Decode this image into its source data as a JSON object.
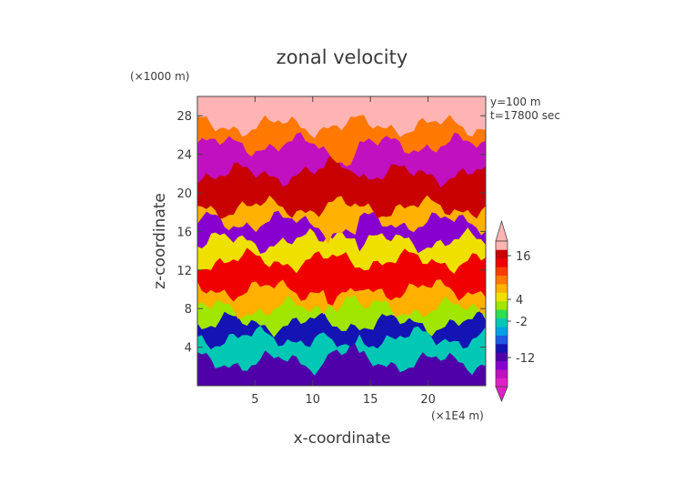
{
  "chart_data": {
    "type": "heatmap",
    "title": "zonal velocity",
    "xlabel": "x-coordinate",
    "ylabel": "z-coordinate",
    "x_unit": "(×1E4 m)",
    "y_unit": "(×1000 m)",
    "annotations": [
      "y=100 m",
      "t=17800 sec"
    ],
    "xlim": [
      0,
      25
    ],
    "ylim": [
      0,
      30
    ],
    "x_ticks": [
      5,
      10,
      15,
      20
    ],
    "y_ticks": [
      4,
      8,
      12,
      16,
      20,
      24,
      28
    ],
    "colorbar": {
      "tick_labels": [
        "16",
        "4",
        "-2",
        "-12"
      ],
      "tick_values": [
        16,
        4,
        -2,
        -12
      ],
      "range": [
        -20,
        20
      ],
      "colors": [
        "#e020c8",
        "#c010c0",
        "#8800d0",
        "#5000a8",
        "#1414b4",
        "#1e5ae6",
        "#00a0e6",
        "#00c8b4",
        "#30dc50",
        "#a0e600",
        "#f0e000",
        "#ffb000",
        "#ff7800",
        "#ff3c00",
        "#f00000",
        "#c80000",
        "#ffb4b4"
      ]
    },
    "bands": [
      {
        "z": [
          0,
          2.5
        ],
        "value": -12
      },
      {
        "z": [
          2.5,
          5
        ],
        "value": -3
      },
      {
        "z": [
          5,
          6.5
        ],
        "value": -10
      },
      {
        "z": [
          6.5,
          8
        ],
        "value": 2
      },
      {
        "z": [
          8,
          10
        ],
        "value": 6
      },
      {
        "z": [
          10,
          13
        ],
        "value": 14
      },
      {
        "z": [
          13,
          15
        ],
        "value": 5
      },
      {
        "z": [
          15,
          17
        ],
        "value": -14
      },
      {
        "z": [
          17,
          18.5
        ],
        "value": 8
      },
      {
        "z": [
          18.5,
          22
        ],
        "value": 17
      },
      {
        "z": [
          22,
          25
        ],
        "value": -16
      },
      {
        "z": [
          25,
          27
        ],
        "value": 10
      },
      {
        "z": [
          27,
          30
        ],
        "value": 18
      }
    ]
  }
}
